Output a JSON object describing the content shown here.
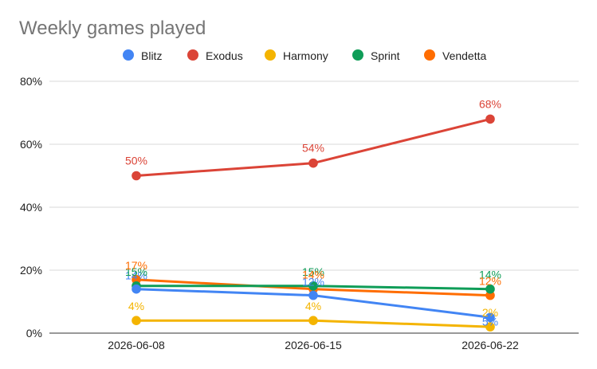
{
  "chart_data": {
    "type": "line",
    "title": "Weekly games played",
    "xlabel": "",
    "ylabel": "",
    "x": [
      "2026-06-08",
      "2026-06-15",
      "2026-06-22"
    ],
    "ylim": [
      0,
      80
    ],
    "yticks": [
      "0%",
      "20%",
      "40%",
      "60%",
      "80%"
    ],
    "y_unit": "%",
    "grid": true,
    "legend_position": "top",
    "series": [
      {
        "name": "Blitz",
        "color": "#4285F4",
        "values": [
          14,
          12,
          5
        ],
        "labels": [
          "14%",
          "12%",
          "5%"
        ]
      },
      {
        "name": "Exodus",
        "color": "#DB4437",
        "values": [
          50,
          54,
          68
        ],
        "labels": [
          "50%",
          "54%",
          "68%"
        ]
      },
      {
        "name": "Harmony",
        "color": "#F4B400",
        "values": [
          4,
          4,
          2
        ],
        "labels": [
          "4%",
          "4%",
          "2%"
        ]
      },
      {
        "name": "Sprint",
        "color": "#0F9D58",
        "values": [
          15,
          15,
          14
        ],
        "labels": [
          "15%",
          "15%",
          "14%"
        ]
      },
      {
        "name": "Vendetta",
        "color": "#FF6D01",
        "values": [
          17,
          14,
          12
        ],
        "labels": [
          "17%",
          "14%",
          "12%"
        ]
      }
    ]
  }
}
